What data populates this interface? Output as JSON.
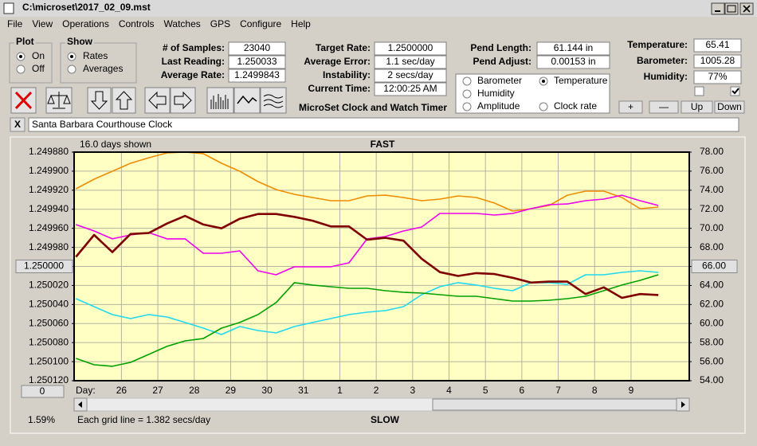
{
  "window_title": "C:\\microset\\2017_02_09.mst",
  "menu": [
    "File",
    "View",
    "Operations",
    "Controls",
    "Watches",
    "GPS",
    "Configure",
    "Help"
  ],
  "plot_group": {
    "title": "Plot",
    "options": [
      {
        "label": "On",
        "checked": true
      },
      {
        "label": "Off",
        "checked": false
      }
    ]
  },
  "show_group": {
    "title": "Show",
    "options": [
      {
        "label": "Rates",
        "checked": true
      },
      {
        "label": "Averages",
        "checked": false
      }
    ]
  },
  "stats": [
    [
      "# of Samples:",
      "23040"
    ],
    [
      "Last Reading:",
      "1.250033"
    ],
    [
      "Average Rate:",
      "1.2499843"
    ]
  ],
  "rates": [
    [
      "Target Rate:",
      "1.2500000"
    ],
    [
      "Average Error:",
      "1.1 sec/day"
    ],
    [
      "Instability:",
      "2 secs/day"
    ],
    [
      "Current Time:",
      "12:00:25 AM"
    ]
  ],
  "app_title": "MicroSet Clock and Watch Timer",
  "pendulum": [
    [
      "Pend Length:",
      "61.144 in"
    ],
    [
      "Pend Adjust:",
      "0.00153 in"
    ]
  ],
  "sensors": [
    [
      "Temperature:",
      "65.41"
    ],
    [
      "Barometer:",
      "1005.28"
    ],
    [
      "Humidity:",
      "77%"
    ]
  ],
  "checkboxes": [
    false,
    true
  ],
  "buttons": [
    "+",
    "—",
    "Up",
    "Down"
  ],
  "clock_name": "Santa Barbara Courthouse Clock",
  "close_label": "X",
  "chart_data": {
    "type": "line",
    "days_shown": "16.0 days shown",
    "top_label": "FAST",
    "bottom_label": "SLOW",
    "xlabel": "Day:",
    "grid_note": "Each grid line = 1.382 secs/day",
    "scroll_percent": "1.59%",
    "offset_button": "0",
    "x": [
      -1.25,
      -0.75,
      -0.25,
      0.25,
      0.75,
      1.25,
      1.75,
      2.25,
      2.75,
      3.25,
      3.75,
      4.25,
      4.75,
      5.25,
      5.75,
      6.25,
      6.75,
      7.25,
      7.75,
      8.25,
      8.75,
      9.25,
      9.75,
      10.25,
      10.75,
      11.25,
      11.75,
      12.25,
      12.75,
      13.25,
      13.75,
      14.25,
      14.75
    ],
    "xlim": [
      -1.3,
      15.6
    ],
    "xticks": [
      {
        "value": 0,
        "label": "26"
      },
      {
        "value": 1,
        "label": "27"
      },
      {
        "value": 2,
        "label": "28"
      },
      {
        "value": 3,
        "label": "29"
      },
      {
        "value": 4,
        "label": "30"
      },
      {
        "value": 5,
        "label": "31"
      },
      {
        "value": 6,
        "label": "1"
      },
      {
        "value": 7,
        "label": "2"
      },
      {
        "value": 8,
        "label": "3"
      },
      {
        "value": 9,
        "label": "4"
      },
      {
        "value": 10,
        "label": "5"
      },
      {
        "value": 11,
        "label": "6"
      },
      {
        "value": 12,
        "label": "7"
      },
      {
        "value": 13,
        "label": "8"
      },
      {
        "value": 14,
        "label": "9"
      }
    ],
    "ylim": [
      1.25012,
      1.24988
    ],
    "yticks": [
      {
        "value": 1.24988,
        "label": "1.249880"
      },
      {
        "value": 1.2499,
        "label": "1.249900"
      },
      {
        "value": 1.24992,
        "label": "1.249920"
      },
      {
        "value": 1.24994,
        "label": "1.249940"
      },
      {
        "value": 1.24996,
        "label": "1.249960"
      },
      {
        "value": 1.24998,
        "label": "1.249980"
      },
      {
        "value": 1.25,
        "label": "1.250000"
      },
      {
        "value": 1.25002,
        "label": "1.250020"
      },
      {
        "value": 1.25004,
        "label": "1.250040"
      },
      {
        "value": 1.25006,
        "label": "1.250060"
      },
      {
        "value": 1.25008,
        "label": "1.250080"
      },
      {
        "value": 1.2501,
        "label": "1.250100"
      },
      {
        "value": 1.25012,
        "label": "1.250120"
      }
    ],
    "y2lim": [
      54,
      78
    ],
    "y2ticks": [
      {
        "value": 78,
        "label": "78.00"
      },
      {
        "value": 76,
        "label": "76.00"
      },
      {
        "value": 74,
        "label": "74.00"
      },
      {
        "value": 72,
        "label": "72.00"
      },
      {
        "value": 70,
        "label": "70.00"
      },
      {
        "value": 68,
        "label": "68.00"
      },
      {
        "value": 66,
        "label": "66.00"
      },
      {
        "value": 64,
        "label": "64.00"
      },
      {
        "value": 62,
        "label": "62.00"
      },
      {
        "value": 60,
        "label": "60.00"
      },
      {
        "value": 58,
        "label": "58.00"
      },
      {
        "value": 56,
        "label": "56.00"
      },
      {
        "value": 54,
        "label": "54.00"
      }
    ],
    "grid": true,
    "series": [
      {
        "name": "Barometer",
        "color": "#f08c00",
        "axis": "y2",
        "selected": false,
        "values": [
          74.15,
          75.16,
          75.99,
          76.83,
          77.41,
          77.92,
          78.0,
          77.83,
          76.83,
          75.99,
          74.91,
          74.07,
          73.57,
          73.23,
          72.9,
          72.9,
          73.4,
          73.48,
          73.23,
          72.9,
          73.07,
          73.4,
          73.23,
          72.65,
          71.81,
          72.06,
          72.4,
          73.48,
          73.9,
          73.9,
          73.23,
          72.06,
          72.23
        ]
      },
      {
        "name": "Humidity",
        "color": "#ee00ee",
        "axis": "y2",
        "selected": false,
        "values": [
          70.39,
          69.72,
          68.89,
          69.3,
          69.55,
          68.89,
          68.89,
          67.38,
          67.38,
          67.63,
          65.54,
          65.12,
          65.96,
          65.96,
          65.96,
          66.38,
          68.89,
          69.14,
          69.72,
          70.14,
          71.56,
          71.56,
          71.56,
          71.39,
          71.56,
          72.06,
          72.48,
          72.56,
          72.9,
          73.07,
          73.48,
          72.9,
          72.4
        ]
      },
      {
        "name": "Amplitude",
        "color": "#22d8f0",
        "axis": "y2",
        "selected": false,
        "values": [
          62.61,
          61.78,
          60.94,
          60.52,
          60.94,
          60.69,
          60.11,
          59.52,
          58.85,
          59.69,
          59.27,
          59.02,
          59.69,
          60.11,
          60.52,
          60.94,
          61.19,
          61.36,
          61.78,
          63.03,
          63.87,
          64.29,
          64.04,
          63.7,
          63.45,
          64.29,
          64.29,
          64.12,
          65.12,
          65.12,
          65.37,
          65.54,
          65.37
        ]
      },
      {
        "name": "Temperature",
        "color": "#00a000",
        "axis": "y2",
        "selected": true,
        "values": [
          56.34,
          55.67,
          55.51,
          55.92,
          56.76,
          57.6,
          58.18,
          58.43,
          59.52,
          60.11,
          60.94,
          62.2,
          64.29,
          64.04,
          63.87,
          63.7,
          63.7,
          63.45,
          63.28,
          63.2,
          63.03,
          62.86,
          62.86,
          62.61,
          62.36,
          62.36,
          62.45,
          62.61,
          62.86,
          63.45,
          64.04,
          64.54,
          65.12
        ]
      },
      {
        "name": "Clock rate",
        "color": "#800000",
        "axis": "y",
        "selected": false,
        "values": [
          1.24999,
          1.249967,
          1.249985,
          1.249966,
          1.249965,
          1.249955,
          1.249947,
          1.249956,
          1.24996,
          1.24995,
          1.249945,
          1.249945,
          1.249948,
          1.249952,
          1.249958,
          1.249958,
          1.249972,
          1.24997,
          1.249973,
          1.249992,
          1.250006,
          1.25001,
          1.250007,
          1.250008,
          1.250012,
          1.250017,
          1.250016,
          1.250016,
          1.250029,
          1.250022,
          1.250033,
          1.250029,
          1.25003
        ]
      }
    ]
  }
}
